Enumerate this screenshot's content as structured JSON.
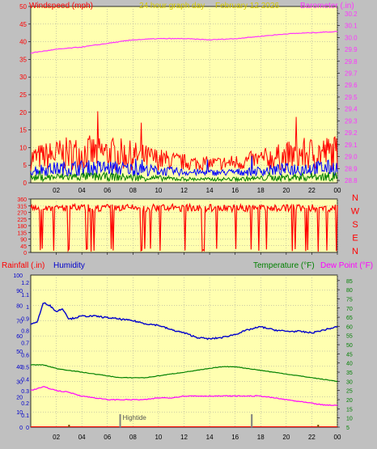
{
  "header": {
    "windspeed_label": "Windspeed (mph)",
    "title": "24 hour graph day",
    "date": "February 12 2026",
    "barometer_label": "Barometer (.in)"
  },
  "legend2": {
    "rainfall_label": "Rainfall (.in)",
    "humidity_label": "Humidity",
    "temperature_label": "Temperature (°F)",
    "dewpoint_label": "Dew Point (°F)"
  },
  "compass": [
    "N",
    "W",
    "S",
    "E",
    "N"
  ],
  "annotation": {
    "hightide": "Hightide"
  },
  "colors": {
    "background": "#c0c0c0",
    "plot_bg": "#ffffb0",
    "wind_gust": "#ff0000",
    "wind_avg": "#0000ff",
    "wind_low": "#008000",
    "barometer": "#ff33ff",
    "humidity": "#0000cc",
    "temperature": "#008000",
    "dewpoint": "#ff00ff",
    "direction": "#ff0000",
    "tide": "#808080"
  },
  "chart_data": [
    {
      "type": "line",
      "name": "wind-barometer",
      "x_ticks": [
        "02",
        "04",
        "06",
        "08",
        "10",
        "12",
        "14",
        "16",
        "18",
        "20",
        "22",
        "00"
      ],
      "y_left_ticks": [
        0,
        5,
        10,
        15,
        20,
        25,
        30,
        35,
        40,
        45,
        50
      ],
      "y_left_range": [
        0,
        50
      ],
      "y_right_ticks": [
        28.8,
        28.9,
        29.0,
        29.1,
        29.2,
        29.3,
        29.4,
        29.5,
        29.6,
        29.7,
        29.8,
        29.9,
        30.0,
        30.1,
        30.2
      ],
      "y_right_range": [
        28.78,
        30.26
      ],
      "grid": true,
      "series": [
        {
          "name": "Windspeed gust",
          "axis": "left",
          "amplitude": 10,
          "base": 3.5
        },
        {
          "name": "Windspeed avg",
          "axis": "left",
          "amplitude": 4.5,
          "base": 2
        },
        {
          "name": "Windspeed low",
          "axis": "left",
          "amplitude": 2.5,
          "base": 0.5
        },
        {
          "name": "Barometer",
          "axis": "right",
          "x": [
            0,
            2,
            4,
            6,
            8,
            10,
            12,
            14,
            16,
            18,
            20,
            22,
            24
          ],
          "values": [
            29.87,
            29.9,
            29.92,
            29.95,
            29.98,
            29.99,
            29.99,
            29.98,
            29.99,
            30.01,
            30.03,
            30.04,
            30.05
          ]
        }
      ]
    },
    {
      "type": "line",
      "name": "wind-direction",
      "y_ticks": [
        0,
        45,
        90,
        135,
        180,
        225,
        270,
        315,
        360
      ],
      "y_range": [
        0,
        360
      ],
      "typical_direction": 300,
      "grid": true
    },
    {
      "type": "line",
      "name": "temperature-humidity",
      "x_ticks": [
        "02",
        "04",
        "06",
        "08",
        "10",
        "12",
        "14",
        "16",
        "18",
        "20",
        "22",
        "00"
      ],
      "y_rain_ticks": [
        0,
        0.1,
        0.2,
        0.3,
        0.4,
        0.5,
        0.6,
        0.7,
        0.8,
        0.9,
        1,
        1.1,
        1.2
      ],
      "y_hum_ticks": [
        0,
        10,
        20,
        30,
        40,
        50,
        60,
        70,
        80,
        90,
        100
      ],
      "y_temp_ticks": [
        5,
        10,
        15,
        20,
        25,
        30,
        35,
        40,
        45,
        50,
        55,
        60,
        65,
        70,
        75,
        80,
        85
      ],
      "y_hum_range": [
        0,
        100
      ],
      "y_temp_range": [
        5,
        88
      ],
      "grid": true,
      "series": [
        {
          "name": "Humidity",
          "axis": "humidity",
          "x": [
            0,
            0.5,
            1,
            1.5,
            2,
            2.5,
            3,
            3.5,
            4,
            5,
            6,
            7,
            8,
            9,
            10,
            11,
            12,
            13,
            14,
            15,
            16,
            17,
            18,
            19,
            20,
            21,
            22,
            23,
            24
          ],
          "values": [
            68,
            69,
            82,
            80,
            76,
            78,
            71,
            72,
            73,
            73,
            72,
            71,
            70,
            68,
            67,
            64,
            62,
            59,
            58,
            59,
            61,
            64,
            66,
            64,
            63,
            63,
            62,
            64,
            66
          ]
        },
        {
          "name": "Temperature",
          "axis": "temperature",
          "x": [
            0,
            1,
            2,
            3,
            4,
            5,
            6,
            7,
            8,
            9,
            10,
            11,
            12,
            13,
            14,
            15,
            16,
            17,
            18,
            19,
            20,
            21,
            22,
            23,
            24
          ],
          "values": [
            39,
            39,
            37,
            36,
            35,
            34,
            33,
            32,
            32,
            32,
            33,
            34,
            35,
            36,
            37,
            38,
            38,
            37,
            36,
            35,
            34,
            33,
            32,
            31,
            30
          ]
        },
        {
          "name": "Dew Point",
          "axis": "temperature",
          "x": [
            0,
            1,
            2,
            3,
            4,
            5,
            6,
            7,
            8,
            9,
            10,
            11,
            12,
            13,
            14,
            15,
            16,
            17,
            18,
            19,
            20,
            21,
            22,
            23,
            24
          ],
          "values": [
            25,
            27,
            25,
            24,
            22,
            21,
            20,
            20,
            20,
            20,
            21,
            21,
            22,
            22,
            22,
            22,
            22,
            22,
            22,
            21,
            20,
            19,
            18,
            17,
            17
          ]
        },
        {
          "name": "Rainfall",
          "axis": "rain",
          "values": [
            0
          ]
        }
      ],
      "tide_marks": [
        7,
        17.3
      ]
    }
  ]
}
